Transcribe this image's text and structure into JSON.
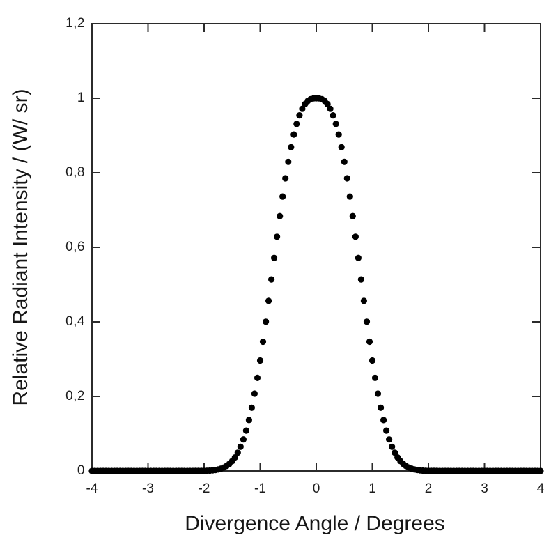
{
  "figure": {
    "background": "#ffffff",
    "frame_color": "#2b2b2b",
    "text_color": "#1c1c1c"
  },
  "chart_data": {
    "type": "scatter",
    "title": "",
    "xlabel": "Divergence Angle / Degrees",
    "ylabel": "Relative Radiant Intensity / (W/ sr)",
    "xlim": [
      -4,
      4
    ],
    "ylim": [
      0,
      1.2
    ],
    "grid": false,
    "legend": false,
    "decimal_separator": ",",
    "x_tick_values": [
      -4,
      -3,
      -2,
      -1,
      0,
      1,
      2,
      3,
      4
    ],
    "x_tick_labels": [
      "-4",
      "-3",
      "-2",
      "-1",
      "0",
      "1",
      "2",
      "3",
      "4"
    ],
    "y_tick_values": [
      0,
      0.2,
      0.4,
      0.6,
      0.8,
      1.0,
      1.2
    ],
    "y_tick_labels": [
      "0",
      "0,2",
      "0,4",
      "0,6",
      "0,8",
      "1",
      "1,2"
    ],
    "marker": {
      "shape": "circle",
      "color": "#000000",
      "radius_px": 4.6
    },
    "series": [
      {
        "name": "relative-radiant-intensity",
        "x_start": -4,
        "x_step": 0.05,
        "n_points": 161,
        "peak": {
          "x": 0,
          "y": 1.0
        },
        "x": [
          -4,
          -3.95,
          -3.9,
          -3.85,
          -3.8,
          -3.75,
          -3.7,
          -3.65,
          -3.6,
          -3.55,
          -3.5,
          -3.45,
          -3.4,
          -3.35,
          -3.3,
          -3.25,
          -3.2,
          -3.15,
          -3.1,
          -3.05,
          -3,
          -2.95,
          -2.9,
          -2.85,
          -2.8,
          -2.75,
          -2.7,
          -2.65,
          -2.6,
          -2.55,
          -2.5,
          -2.45,
          -2.4,
          -2.35,
          -2.3,
          -2.25,
          -2.2,
          -2.15,
          -2.1,
          -2.05,
          -2,
          -1.95,
          -1.9,
          -1.85,
          -1.8,
          -1.75,
          -1.7,
          -1.65,
          -1.6,
          -1.55,
          -1.5,
          -1.45,
          -1.4,
          -1.35,
          -1.3,
          -1.25,
          -1.2,
          -1.15,
          -1.1,
          -1.05,
          -1,
          -0.95,
          -0.9,
          -0.85,
          -0.8,
          -0.75,
          -0.7,
          -0.65,
          -0.6,
          -0.55,
          -0.5,
          -0.45,
          -0.4,
          -0.35,
          -0.3,
          -0.25,
          -0.2,
          -0.15,
          -0.1,
          -0.05,
          0,
          0.05,
          0.1,
          0.15,
          0.2,
          0.25,
          0.3,
          0.35,
          0.4,
          0.45,
          0.5,
          0.55,
          0.6,
          0.65,
          0.7,
          0.75,
          0.8,
          0.85,
          0.9,
          0.95,
          1,
          1.05,
          1.1,
          1.15,
          1.2,
          1.25,
          1.3,
          1.35,
          1.4,
          1.45,
          1.5,
          1.55,
          1.6,
          1.65,
          1.7,
          1.75,
          1.8,
          1.85,
          1.9,
          1.95,
          2,
          2.05,
          2.1,
          2.15,
          2.2,
          2.25,
          2.3,
          2.35,
          2.4,
          2.45,
          2.5,
          2.55,
          2.6,
          2.65,
          2.7,
          2.75,
          2.8,
          2.85,
          2.9,
          2.95,
          3,
          3.05,
          3.1,
          3.15,
          3.2,
          3.25,
          3.3,
          3.35,
          3.4,
          3.45,
          3.5,
          3.55,
          3.6,
          3.65,
          3.7,
          3.75,
          3.8,
          3.85,
          3.9,
          3.95,
          4
        ],
        "y": [
          0,
          0,
          0,
          0,
          0,
          0,
          0,
          0,
          0,
          0,
          0,
          0,
          0,
          0,
          0,
          0,
          0,
          0,
          0,
          0,
          0,
          0,
          0,
          0,
          0,
          0,
          0,
          0,
          0,
          0,
          0,
          0,
          0,
          0,
          0,
          0,
          0,
          0.0001,
          0.0001,
          0.0002,
          0.0004,
          0.0006,
          0.001,
          0.0017,
          0.0026,
          0.004,
          0.0061,
          0.0091,
          0.0132,
          0.0188,
          0.0264,
          0.0363,
          0.0489,
          0.0649,
          0.0846,
          0.1083,
          0.1367,
          0.1696,
          0.2074,
          0.2497,
          0.2963,
          0.3468,
          0.4004,
          0.4563,
          0.5139,
          0.5715,
          0.6285,
          0.6837,
          0.7362,
          0.785,
          0.8294,
          0.8686,
          0.9026,
          0.931,
          0.954,
          0.9716,
          0.9843,
          0.9928,
          0.9976,
          0.9996,
          1,
          0.9996,
          0.9976,
          0.9928,
          0.9843,
          0.9716,
          0.954,
          0.931,
          0.9026,
          0.8686,
          0.8294,
          0.785,
          0.7362,
          0.6837,
          0.6285,
          0.5715,
          0.5139,
          0.4563,
          0.4004,
          0.3468,
          0.2963,
          0.2497,
          0.2074,
          0.1696,
          0.1367,
          0.1083,
          0.0846,
          0.0649,
          0.0489,
          0.0363,
          0.0264,
          0.0188,
          0.0132,
          0.0091,
          0.0061,
          0.004,
          0.0026,
          0.0017,
          0.001,
          0.0006,
          0.0004,
          0.0002,
          0.0001,
          0.0001,
          0,
          0,
          0,
          0,
          0,
          0,
          0,
          0,
          0,
          0,
          0,
          0,
          0,
          0,
          0,
          0,
          0,
          0,
          0,
          0,
          0,
          0,
          0,
          0,
          0,
          0,
          0,
          0,
          0,
          0,
          0,
          0,
          0,
          0,
          0,
          0,
          0
        ]
      }
    ]
  }
}
